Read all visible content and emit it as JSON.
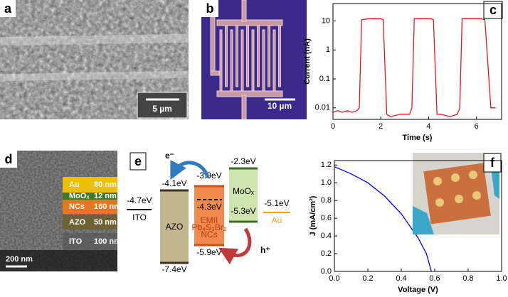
{
  "panel_labels": [
    "a",
    "b",
    "c",
    "d",
    "e",
    "f"
  ],
  "sem_image": {
    "scale_bar": "5 µm"
  },
  "device_image": {
    "scale_bar": "10 µm"
  },
  "cross_section": {
    "scale_bar": "200 nm",
    "layers": [
      {
        "name": "Au",
        "thickness": "80  nm"
      },
      {
        "name": "MoOₓ",
        "thickness": "12  nm"
      },
      {
        "name": "NCs",
        "thickness": "160 nm"
      },
      {
        "name": "AZO",
        "thickness": "50  nm"
      },
      {
        "name": "ITO",
        "thickness": "100 nm"
      }
    ]
  },
  "energy_diagram": {
    "ito": {
      "level": "-4.7eV",
      "name": "ITO"
    },
    "azo": {
      "top": "-4.1eV",
      "bottom": "-7.4eV",
      "name": "AZO"
    },
    "ncs": {
      "top": "-3.9eV",
      "mid": "-4.3eV",
      "bottom": "-5.9eV",
      "name": [
        "EMII",
        "Pb₄S₃Br₂",
        "NCs"
      ]
    },
    "moox": {
      "top": "-2.3eV",
      "bottom": "-5.3eV",
      "name": "MoOₓ"
    },
    "au": {
      "level": "-5.1eV",
      "name": "Au"
    },
    "electron": "e⁻",
    "hole": "h⁺"
  },
  "chart_data": [
    {
      "type": "line",
      "x_label": "Time (s)",
      "y_label": "Current (nA)",
      "color": "#e8141c",
      "log_y": true,
      "x": [
        0,
        0.2,
        0.4,
        0.6,
        0.8,
        1.0,
        1.1,
        1.2,
        1.5,
        2.0,
        2.1,
        2.25,
        2.4,
        2.8,
        3.2,
        3.3,
        3.4,
        3.7,
        4.1,
        4.2,
        4.35,
        4.5,
        4.9,
        5.2,
        5.3,
        5.4,
        5.8,
        6.2,
        6.35,
        6.6,
        6.8
      ],
      "values": [
        0.007,
        0.008,
        0.007,
        0.008,
        0.007,
        0.008,
        0.01,
        11,
        12,
        12,
        11,
        0.006,
        0.005,
        0.006,
        0.006,
        0.01,
        12,
        12,
        12,
        11,
        0.006,
        0.006,
        0.005,
        0.006,
        0.01,
        12,
        12,
        12,
        11,
        0.01,
        0.01
      ],
      "xlim": [
        0,
        7.05
      ],
      "ylim": [
        0.004,
        40
      ],
      "xticks": [
        0,
        2,
        4,
        6
      ],
      "yticks": [
        0.01,
        0.1,
        1,
        10
      ]
    },
    {
      "type": "line",
      "x_label": "Voltage (V)",
      "y_label": "J (mA/cm²)",
      "color": "#0000ff",
      "log_y": false,
      "x": [
        0,
        0.1,
        0.2,
        0.3,
        0.4,
        0.5,
        0.55,
        0.58
      ],
      "values": [
        1.18,
        1.1,
        1.0,
        0.85,
        0.65,
        0.38,
        0.2,
        0
      ],
      "xlim": [
        0,
        1.0
      ],
      "ylim": [
        0,
        1.25
      ],
      "xticks": [
        {
          "value": 0,
          "label": "0.0"
        },
        0.2,
        0.4,
        0.6,
        0.8,
        {
          "value": 1,
          "label": "1.0"
        }
      ],
      "yticks": [
        {
          "value": 0,
          "label": "0.0"
        },
        0.2,
        0.4,
        0.6,
        0.8,
        {
          "value": 1,
          "label": "1.0"
        },
        1.2
      ]
    }
  ]
}
